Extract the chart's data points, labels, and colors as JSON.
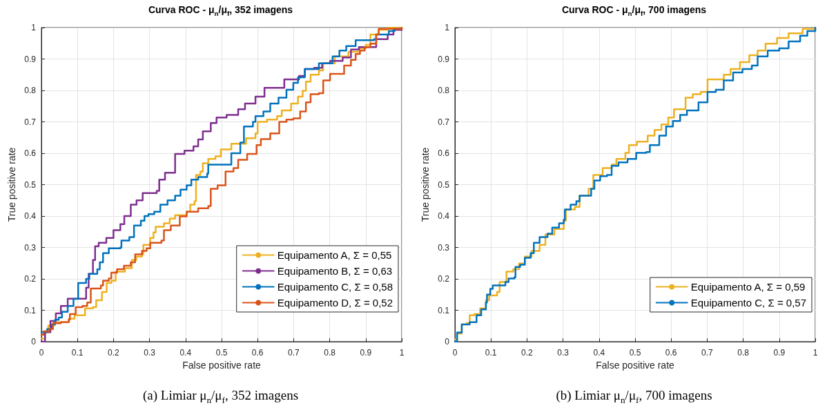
{
  "chart_data": [
    {
      "type": "step",
      "title": "Curva ROC - μ$_{n}$/μ$_{f}$, 352 imagens",
      "xlabel": "False positive rate",
      "ylabel": "True positive rate",
      "annotations": [
        "(a) Limiar μ$_{n}$/μ$_{f}$, 352 imagens"
      ],
      "xlim": [
        0,
        1
      ],
      "ylim": [
        0,
        1
      ],
      "xticks": [
        0,
        0.1,
        0.2,
        0.3,
        0.4,
        0.5,
        0.6,
        0.7,
        0.8,
        0.9,
        1
      ],
      "yticks": [
        0,
        0.1,
        0.2,
        0.3,
        0.4,
        0.5,
        0.6,
        0.7,
        0.8,
        0.9,
        1
      ],
      "grid": true,
      "legend": "bottom right",
      "series": [
        {
          "name": "Equipamento A, Σ = 0,55",
          "color": "#edb120",
          "x": [
            0,
            0.01,
            0.019,
            0.035,
            0.054,
            0.076,
            0.092,
            0.114,
            0.121,
            0.143,
            0.152,
            0.168,
            0.181,
            0.194,
            0.206,
            0.232,
            0.251,
            0.263,
            0.279,
            0.283,
            0.302,
            0.311,
            0.317,
            0.34,
            0.356,
            0.371,
            0.403,
            0.413,
            0.425,
            0.429,
            0.441,
            0.448,
            0.463,
            0.483,
            0.498,
            0.527,
            0.552,
            0.568,
            0.594,
            0.6,
            0.626,
            0.654,
            0.667,
            0.693,
            0.712,
            0.725,
            0.734,
            0.747,
            0.77,
            0.782,
            0.814,
            0.852,
            0.884,
            0.9,
            0.913,
            0.936,
            0.961,
            1
          ],
          "values": [
            0.01,
            0.033,
            0.051,
            0.062,
            0.062,
            0.073,
            0.084,
            0.084,
            0.106,
            0.11,
            0.132,
            0.158,
            0.187,
            0.194,
            0.223,
            0.234,
            0.26,
            0.271,
            0.278,
            0.308,
            0.33,
            0.348,
            0.366,
            0.377,
            0.392,
            0.403,
            0.414,
            0.436,
            0.447,
            0.531,
            0.542,
            0.568,
            0.582,
            0.59,
            0.612,
            0.63,
            0.63,
            0.648,
            0.663,
            0.7,
            0.707,
            0.718,
            0.736,
            0.758,
            0.78,
            0.799,
            0.828,
            0.85,
            0.864,
            0.886,
            0.908,
            0.923,
            0.934,
            0.945,
            0.978,
            0.993,
            1,
            1
          ]
        },
        {
          "name": "Equipamento B, Σ = 0,63",
          "color": "#7e2f8e",
          "x": [
            0,
            0.01,
            0.025,
            0.04,
            0.054,
            0.073,
            0.1,
            0.124,
            0.131,
            0.143,
            0.149,
            0.159,
            0.18,
            0.2,
            0.219,
            0.23,
            0.248,
            0.264,
            0.281,
            0.32,
            0.327,
            0.343,
            0.362,
            0.371,
            0.397,
            0.422,
            0.435,
            0.448,
            0.47,
            0.486,
            0.514,
            0.546,
            0.565,
            0.594,
            0.619,
            0.674,
            0.715,
            0.731,
            0.757,
            0.779,
            0.801,
            0.836,
            0.859,
            0.881,
            0.929,
            0.961,
            0.977,
            1
          ],
          "values": [
            0,
            0.03,
            0.066,
            0.09,
            0.114,
            0.137,
            0.137,
            0.172,
            0.216,
            0.26,
            0.304,
            0.315,
            0.33,
            0.355,
            0.374,
            0.4,
            0.436,
            0.45,
            0.473,
            0.48,
            0.516,
            0.538,
            0.538,
            0.598,
            0.608,
            0.622,
            0.644,
            0.67,
            0.696,
            0.714,
            0.722,
            0.74,
            0.758,
            0.78,
            0.808,
            0.835,
            0.846,
            0.868,
            0.872,
            0.886,
            0.894,
            0.905,
            0.93,
            0.938,
            0.963,
            0.978,
            0.993,
            0.994
          ]
        },
        {
          "name": "Equipamento C, Σ = 0,58",
          "color": "#0072bd",
          "x": [
            0,
            0.016,
            0.029,
            0.038,
            0.048,
            0.057,
            0.073,
            0.089,
            0.102,
            0.124,
            0.133,
            0.155,
            0.162,
            0.171,
            0.187,
            0.2,
            0.219,
            0.222,
            0.244,
            0.257,
            0.276,
            0.286,
            0.297,
            0.313,
            0.33,
            0.35,
            0.371,
            0.386,
            0.403,
            0.416,
            0.435,
            0.46,
            0.463,
            0.517,
            0.527,
            0.552,
            0.562,
            0.587,
            0.594,
            0.616,
            0.635,
            0.658,
            0.68,
            0.699,
            0.712,
            0.731,
            0.77,
            0.808,
            0.827,
            0.846,
            0.872,
            0.923,
            0.929,
            0.964,
            0.98,
            1
          ],
          "values": [
            0.03,
            0.04,
            0.055,
            0.07,
            0.077,
            0.095,
            0.114,
            0.136,
            0.187,
            0.2,
            0.216,
            0.23,
            0.253,
            0.282,
            0.297,
            0.297,
            0.3,
            0.322,
            0.333,
            0.37,
            0.385,
            0.4,
            0.406,
            0.414,
            0.436,
            0.45,
            0.465,
            0.484,
            0.498,
            0.516,
            0.524,
            0.535,
            0.564,
            0.564,
            0.6,
            0.634,
            0.685,
            0.7,
            0.718,
            0.733,
            0.758,
            0.777,
            0.802,
            0.824,
            0.842,
            0.868,
            0.886,
            0.908,
            0.927,
            0.941,
            0.96,
            0.963,
            0.978,
            0.989,
            0.996,
            0.996
          ]
        },
        {
          "name": "Equipamento D, Σ = 0,52",
          "color": "#d95319",
          "x": [
            0,
            0.006,
            0.022,
            0.032,
            0.054,
            0.076,
            0.079,
            0.095,
            0.114,
            0.127,
            0.137,
            0.165,
            0.171,
            0.187,
            0.194,
            0.21,
            0.229,
            0.248,
            0.26,
            0.279,
            0.292,
            0.302,
            0.333,
            0.34,
            0.359,
            0.384,
            0.403,
            0.435,
            0.463,
            0.47,
            0.489,
            0.508,
            0.511,
            0.533,
            0.546,
            0.571,
            0.597,
            0.609,
            0.635,
            0.66,
            0.68,
            0.699,
            0.718,
            0.734,
            0.747,
            0.77,
            0.782,
            0.801,
            0.824,
            0.84,
            0.859,
            0.872,
            0.884,
            0.897,
            0.913,
            0.929,
            0.936,
            1
          ],
          "values": [
            0.022,
            0.033,
            0.04,
            0.059,
            0.062,
            0.07,
            0.088,
            0.11,
            0.114,
            0.125,
            0.169,
            0.179,
            0.194,
            0.201,
            0.22,
            0.231,
            0.242,
            0.253,
            0.278,
            0.289,
            0.297,
            0.315,
            0.322,
            0.355,
            0.37,
            0.399,
            0.414,
            0.425,
            0.432,
            0.487,
            0.498,
            0.498,
            0.542,
            0.553,
            0.579,
            0.598,
            0.626,
            0.645,
            0.663,
            0.7,
            0.707,
            0.711,
            0.733,
            0.762,
            0.788,
            0.791,
            0.832,
            0.853,
            0.853,
            0.879,
            0.897,
            0.916,
            0.927,
            0.938,
            0.949,
            0.978,
            0.996,
            1
          ]
        }
      ]
    },
    {
      "type": "step",
      "title": "Curva ROC - μ$_{n}$/μ$_{f}$, 700 imagens",
      "xlabel": "False positive rate",
      "ylabel": "True positive rate",
      "annotations": [
        "(b) Limiar μ$_{n}$/μ$_{f}$, 700 imagens"
      ],
      "xlim": [
        0,
        1
      ],
      "ylim": [
        0,
        1
      ],
      "xticks": [
        0,
        0.1,
        0.2,
        0.3,
        0.4,
        0.5,
        0.6,
        0.7,
        0.8,
        0.9,
        1
      ],
      "yticks": [
        0,
        0.1,
        0.2,
        0.3,
        0.4,
        0.5,
        0.6,
        0.7,
        0.8,
        0.9,
        1
      ],
      "grid": true,
      "legend": "bottom right",
      "series": [
        {
          "name": "Equipamento A, Σ = 0,59",
          "color": "#edb120",
          "x": [
            0,
            0.006,
            0.019,
            0.032,
            0.041,
            0.054,
            0.07,
            0.086,
            0.095,
            0.117,
            0.124,
            0.143,
            0.162,
            0.178,
            0.194,
            0.213,
            0.235,
            0.251,
            0.276,
            0.302,
            0.308,
            0.333,
            0.346,
            0.371,
            0.384,
            0.41,
            0.435,
            0.448,
            0.473,
            0.483,
            0.505,
            0.515,
            0.535,
            0.554,
            0.573,
            0.592,
            0.608,
            0.64,
            0.66,
            0.682,
            0.701,
            0.746,
            0.765,
            0.791,
            0.817,
            0.84,
            0.862,
            0.894,
            0.926,
            0.965,
            1
          ],
          "values": [
            0.007,
            0.026,
            0.055,
            0.059,
            0.084,
            0.088,
            0.106,
            0.132,
            0.147,
            0.158,
            0.19,
            0.223,
            0.231,
            0.249,
            0.271,
            0.289,
            0.308,
            0.341,
            0.359,
            0.385,
            0.421,
            0.429,
            0.465,
            0.487,
            0.531,
            0.553,
            0.564,
            0.582,
            0.601,
            0.626,
            0.637,
            0.637,
            0.656,
            0.674,
            0.692,
            0.714,
            0.74,
            0.777,
            0.788,
            0.795,
            0.835,
            0.85,
            0.868,
            0.89,
            0.912,
            0.927,
            0.949,
            0.967,
            0.982,
            0.996,
            1
          ]
        },
        {
          "name": "Equipamento C, Σ = 0,57",
          "color": "#0072bd",
          "x": [
            0,
            0.006,
            0.019,
            0.041,
            0.06,
            0.073,
            0.086,
            0.089,
            0.098,
            0.105,
            0.127,
            0.14,
            0.149,
            0.165,
            0.168,
            0.181,
            0.194,
            0.21,
            0.219,
            0.235,
            0.257,
            0.27,
            0.289,
            0.302,
            0.305,
            0.321,
            0.337,
            0.346,
            0.378,
            0.387,
            0.403,
            0.422,
            0.435,
            0.454,
            0.479,
            0.503,
            0.531,
            0.541,
            0.567,
            0.586,
            0.605,
            0.625,
            0.644,
            0.66,
            0.676,
            0.701,
            0.724,
            0.746,
            0.772,
            0.798,
            0.824,
            0.84,
            0.868,
            0.9,
            0.926,
            0.958,
            0.978,
            1
          ],
          "values": [
            0,
            0.029,
            0.055,
            0.062,
            0.084,
            0.103,
            0.125,
            0.15,
            0.168,
            0.179,
            0.179,
            0.19,
            0.201,
            0.205,
            0.238,
            0.245,
            0.267,
            0.282,
            0.315,
            0.333,
            0.344,
            0.363,
            0.377,
            0.388,
            0.421,
            0.436,
            0.447,
            0.465,
            0.487,
            0.513,
            0.527,
            0.531,
            0.56,
            0.571,
            0.582,
            0.601,
            0.604,
            0.626,
            0.656,
            0.685,
            0.703,
            0.722,
            0.736,
            0.736,
            0.762,
            0.795,
            0.802,
            0.832,
            0.857,
            0.868,
            0.879,
            0.908,
            0.927,
            0.934,
            0.956,
            0.974,
            0.989,
            1
          ]
        }
      ]
    }
  ]
}
